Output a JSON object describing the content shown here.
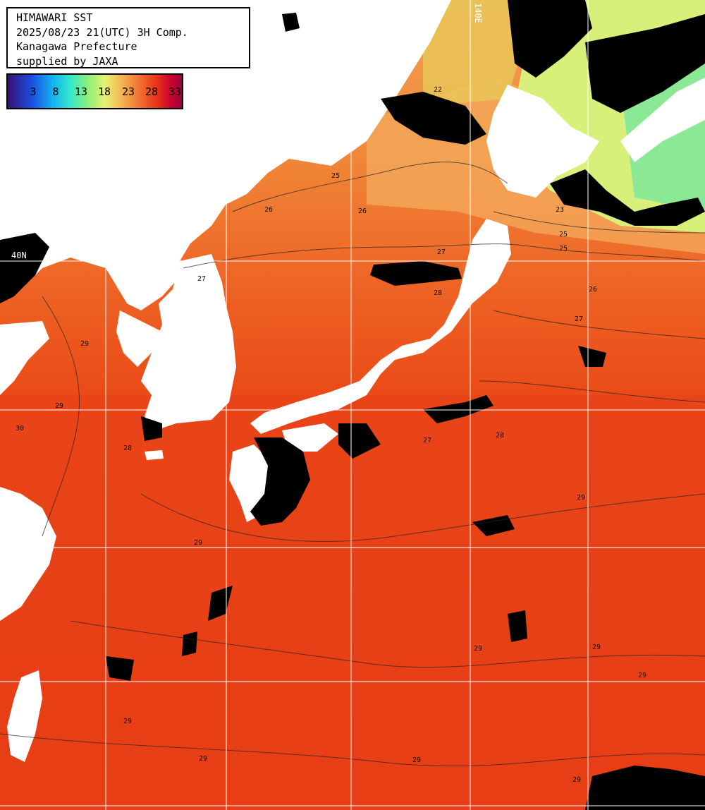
{
  "header": {
    "line1": "HIMAWARI SST",
    "line2": "2025/08/23 21(UTC) 3H Comp.",
    "line3": "Kanagawa Prefecture",
    "line4": "supplied by JAXA"
  },
  "legend": {
    "ticks": [
      "3",
      "8",
      "13",
      "18",
      "23",
      "28",
      "33"
    ]
  },
  "grid_labels": {
    "lat_40": "40N",
    "lon_140": "140E"
  },
  "contour_labels": [
    "22",
    "25",
    "26",
    "26",
    "25",
    "27",
    "27",
    "28",
    "26",
    "27",
    "27",
    "28",
    "29",
    "29",
    "30",
    "28",
    "29",
    "29",
    "29",
    "29",
    "29",
    "29",
    "29",
    "29",
    "29",
    "23",
    "25"
  ],
  "colors": {
    "land": "#ffffff",
    "cloud": "#000000",
    "sea_warm": "#ea3a12",
    "grid": "#ffffff"
  }
}
